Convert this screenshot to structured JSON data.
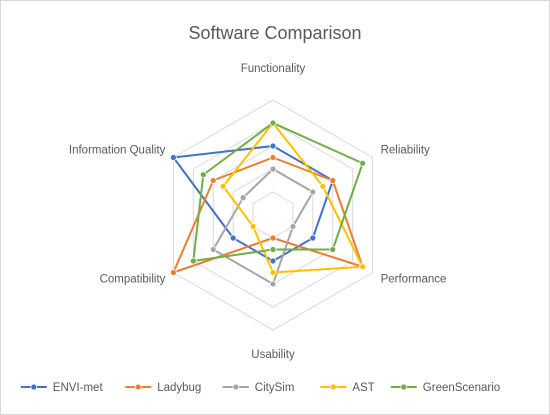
{
  "chart_data": {
    "type": "radar",
    "title": "Software Comparison",
    "axes": [
      "Functionality",
      "Reliability",
      "Performance",
      "Usability",
      "Compatibility",
      "Information Quality"
    ],
    "range": [
      0,
      5
    ],
    "levels": 5,
    "grid": true,
    "legend_position": "bottom",
    "series": [
      {
        "name": "ENVI-met",
        "color": "#4472C4",
        "values": [
          3,
          3,
          2,
          2,
          2,
          5
        ]
      },
      {
        "name": "Ladybug",
        "color": "#ED7D31",
        "values": [
          2.5,
          3,
          4.5,
          1,
          5,
          3
        ]
      },
      {
        "name": "CitySim",
        "color": "#A5A5A5",
        "values": [
          2,
          2,
          1,
          3,
          3,
          1.5
        ]
      },
      {
        "name": "AST",
        "color": "#FFC000",
        "values": [
          4,
          2.5,
          4.5,
          2.5,
          1,
          2.5
        ]
      },
      {
        "name": "GreenScenario",
        "color": "#70AD47",
        "values": [
          4,
          4.5,
          3,
          1.5,
          4,
          3.5
        ]
      }
    ]
  }
}
